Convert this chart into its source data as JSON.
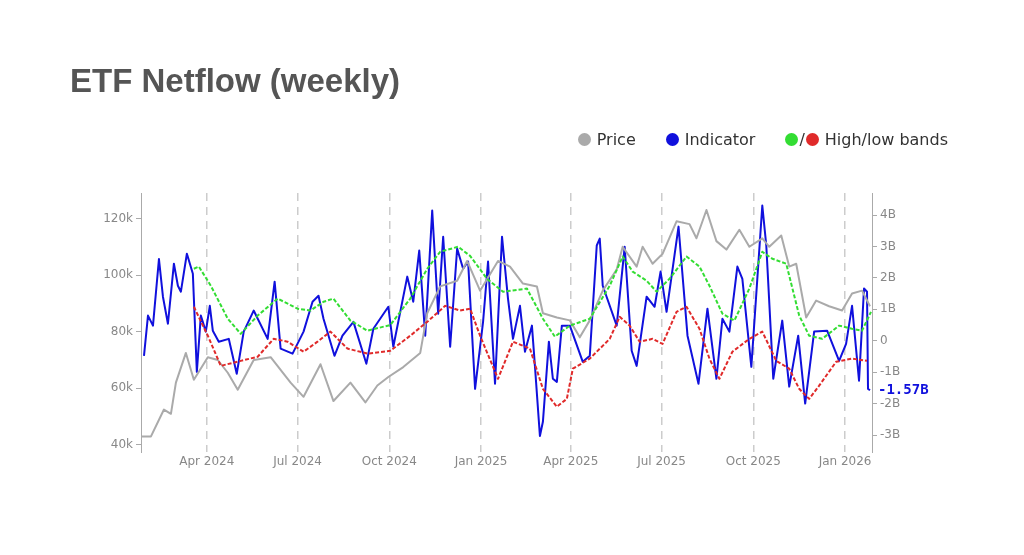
{
  "chart_data": {
    "type": "line",
    "title": "ETF Netflow (weekly)",
    "legend": "top right",
    "grid": "x",
    "marker": "none",
    "xlim": [
      "2024-01-26",
      "2026-01-28"
    ],
    "xticks": [
      {
        "value": "2024-04-01",
        "label": "Apr 2024"
      },
      {
        "value": "2024-07-01",
        "label": "Jul 2024"
      },
      {
        "value": "2024-10-01",
        "label": "Oct 2024"
      },
      {
        "value": "2025-01-01",
        "label": "Jan 2025"
      },
      {
        "value": "2025-04-01",
        "label": "Apr 2025"
      },
      {
        "value": "2025-07-01",
        "label": "Jul 2025"
      },
      {
        "value": "2025-10-01",
        "label": "Oct 2025"
      },
      {
        "value": "2026-01-01",
        "label": "Jan 2026"
      }
    ],
    "ylim": [
      37500,
      129000
    ],
    "yticks": [
      {
        "value": 40000,
        "label": "40k"
      },
      {
        "value": 60000,
        "label": "60k"
      },
      {
        "value": 80000,
        "label": "80k"
      },
      {
        "value": 100000,
        "label": "100k"
      },
      {
        "value": 120000,
        "label": "120k"
      }
    ],
    "y2lim": [
      -3.54,
      4.7
    ],
    "y2ticks": [
      {
        "value": -3,
        "label": "-3B"
      },
      {
        "value": -2,
        "label": "-2B"
      },
      {
        "value": -1,
        "label": "-1B"
      },
      0,
      {
        "value": 1,
        "label": "1B"
      },
      {
        "value": 2,
        "label": "2B"
      },
      {
        "value": 3,
        "label": "3B"
      },
      {
        "value": 4,
        "label": "4B"
      }
    ],
    "annotations": [
      "-1.57B"
    ],
    "series": [
      {
        "name": "Price",
        "color": "#aaaaaa",
        "x": [
          "2024-01-27",
          "2024-02-05",
          "2024-02-18",
          "2024-02-25",
          "2024-03-01",
          "2024-03-11",
          "2024-03-19",
          "2024-04-02",
          "2024-04-12",
          "2024-04-22",
          "2024-05-02",
          "2024-05-18",
          "2024-06-04",
          "2024-06-24",
          "2024-07-07",
          "2024-07-24",
          "2024-08-06",
          "2024-08-23",
          "2024-09-07",
          "2024-09-19",
          "2024-09-30",
          "2024-10-15",
          "2024-11-01",
          "2024-11-08",
          "2024-11-21",
          "2024-12-08",
          "2024-12-18",
          "2024-12-31",
          "2025-01-18",
          "2025-01-30",
          "2025-02-12",
          "2025-02-26",
          "2025-03-04",
          "2025-03-18",
          "2025-03-31",
          "2025-04-10",
          "2025-04-20",
          "2025-05-03",
          "2025-05-17",
          "2025-05-23",
          "2025-06-06",
          "2025-06-12",
          "2025-06-22",
          "2025-07-02",
          "2025-07-16",
          "2025-07-29",
          "2025-08-05",
          "2025-08-15",
          "2025-08-25",
          "2025-09-04",
          "2025-09-17",
          "2025-09-27",
          "2025-10-10",
          "2025-10-17",
          "2025-10-29",
          "2025-11-06",
          "2025-11-13",
          "2025-11-23",
          "2025-12-03",
          "2025-12-16",
          "2025-12-29",
          "2026-01-08",
          "2026-01-18",
          "2026-01-26"
        ],
        "values": [
          43000,
          43000,
          52500,
          51000,
          62000,
          72500,
          63000,
          71000,
          70000,
          65500,
          59500,
          70000,
          71000,
          62000,
          57000,
          68500,
          55500,
          62000,
          55000,
          61000,
          64000,
          67500,
          72500,
          86500,
          96000,
          98000,
          105000,
          94500,
          105000,
          103000,
          97000,
          96000,
          86500,
          85000,
          84000,
          78000,
          84000,
          94500,
          102000,
          110000,
          103000,
          110000,
          104000,
          107500,
          119000,
          118000,
          113000,
          123000,
          112000,
          109000,
          116000,
          110000,
          113000,
          110000,
          114000,
          103000,
          104000,
          85000,
          91000,
          89000,
          87500,
          93500,
          94500,
          89000
        ]
      },
      {
        "name": "Indicator",
        "color": "#1010dd",
        "axis": "y2",
        "x": [
          "2024-01-29",
          "2024-02-02",
          "2024-02-07",
          "2024-02-13",
          "2024-02-17",
          "2024-02-22",
          "2024-02-28",
          "2024-03-03",
          "2024-03-06",
          "2024-03-12",
          "2024-03-18",
          "2024-03-22",
          "2024-03-26",
          "2024-03-31",
          "2024-04-04",
          "2024-04-07",
          "2024-04-13",
          "2024-04-23",
          "2024-05-01",
          "2024-05-08",
          "2024-05-18",
          "2024-06-01",
          "2024-06-08",
          "2024-06-14",
          "2024-06-26",
          "2024-07-07",
          "2024-07-16",
          "2024-07-22",
          "2024-07-27",
          "2024-08-07",
          "2024-08-15",
          "2024-08-26",
          "2024-09-08",
          "2024-09-15",
          "2024-09-30",
          "2024-10-05",
          "2024-10-19",
          "2024-10-25",
          "2024-10-31",
          "2024-11-06",
          "2024-11-13",
          "2024-11-19",
          "2024-11-24",
          "2024-12-01",
          "2024-12-08",
          "2024-12-14",
          "2024-12-19",
          "2024-12-26",
          "2025-01-03",
          "2025-01-08",
          "2025-01-15",
          "2025-01-22",
          "2025-01-28",
          "2025-02-02",
          "2025-02-09",
          "2025-02-14",
          "2025-02-21",
          "2025-02-24",
          "2025-03-01",
          "2025-03-04",
          "2025-03-10",
          "2025-03-14",
          "2025-03-18",
          "2025-03-23",
          "2025-03-31",
          "2025-04-13",
          "2025-04-20",
          "2025-04-27",
          "2025-04-30",
          "2025-05-03",
          "2025-05-17",
          "2025-05-25",
          "2025-06-01",
          "2025-06-06",
          "2025-06-16",
          "2025-06-24",
          "2025-06-30",
          "2025-07-06",
          "2025-07-18",
          "2025-07-27",
          "2025-08-07",
          "2025-08-16",
          "2025-08-25",
          "2025-08-31",
          "2025-09-07",
          "2025-09-15",
          "2025-09-20",
          "2025-09-29",
          "2025-10-10",
          "2025-10-14",
          "2025-10-21",
          "2025-10-30",
          "2025-11-06",
          "2025-11-15",
          "2025-11-22",
          "2025-12-01",
          "2025-12-14",
          "2025-12-26",
          "2026-01-02",
          "2026-01-08",
          "2026-01-15",
          "2026-01-20",
          "2026-01-23",
          "2026-01-24",
          "2026-01-26"
        ],
        "values": [
          -0.48,
          0.8,
          0.48,
          2.6,
          1.4,
          0.54,
          2.45,
          1.75,
          1.56,
          2.77,
          2.13,
          -0.99,
          0.8,
          0.29,
          1.11,
          0.32,
          -0.03,
          0.06,
          -1.05,
          0.29,
          0.96,
          0.06,
          1.88,
          -0.25,
          -0.41,
          0.29,
          1.24,
          1.43,
          0.7,
          -0.48,
          0.16,
          0.6,
          -0.73,
          0.38,
          1.08,
          -0.19,
          2.04,
          1.24,
          2.87,
          0.16,
          4.14,
          0.86,
          3.31,
          -0.19,
          2.93,
          2.29,
          2.52,
          -1.53,
          0.6,
          2.52,
          -1.37,
          3.31,
          1.34,
          0.06,
          1.11,
          -0.35,
          0.48,
          -0.8,
          -3.03,
          -2.58,
          -0.03,
          -1.21,
          -1.31,
          0.48,
          0.48,
          -0.67,
          -0.48,
          3.03,
          3.25,
          1.75,
          0.48,
          2.99,
          -0.32,
          -0.8,
          1.4,
          1.08,
          2.2,
          0.92,
          3.63,
          0.16,
          -1.37,
          1.02,
          -1.21,
          0.7,
          0.29,
          2.36,
          1.97,
          -0.83,
          4.3,
          3.03,
          -1.21,
          0.64,
          -1.46,
          0.16,
          -2.0,
          0.29,
          0.32,
          -0.64,
          -0.1,
          1.11,
          -1.27,
          1.66,
          1.56,
          -1.53,
          -1.57
        ]
      },
      {
        "name": "/",
        "color": "#33dd33",
        "axis": "y2",
        "line_style": "dashed",
        "x": [
          "2024-03-19",
          "2024-03-24",
          "2024-04-05",
          "2024-04-22",
          "2024-05-05",
          "2024-05-22",
          "2024-06-11",
          "2024-07-01",
          "2024-07-14",
          "2024-07-27",
          "2024-08-06",
          "2024-08-23",
          "2024-09-09",
          "2024-10-02",
          "2024-10-22",
          "2024-11-08",
          "2024-11-21",
          "2024-12-09",
          "2024-12-21",
          "2025-01-07",
          "2025-01-23",
          "2025-02-16",
          "2025-03-04",
          "2025-03-16",
          "2025-03-31",
          "2025-04-20",
          "2025-05-10",
          "2025-05-23",
          "2025-06-02",
          "2025-06-16",
          "2025-06-26",
          "2025-07-09",
          "2025-07-26",
          "2025-08-08",
          "2025-08-18",
          "2025-08-31",
          "2025-09-12",
          "2025-09-27",
          "2025-10-10",
          "2025-10-20",
          "2025-11-03",
          "2025-11-16",
          "2025-11-26",
          "2025-12-09",
          "2025-12-26",
          "2026-01-08",
          "2026-01-18",
          "2026-01-27"
        ],
        "values": [
          2.29,
          2.36,
          1.75,
          0.7,
          0.22,
          0.8,
          1.34,
          1.02,
          0.96,
          1.24,
          1.34,
          0.64,
          0.32,
          0.5,
          1.34,
          2.29,
          2.83,
          2.99,
          2.7,
          1.97,
          1.56,
          1.66,
          0.7,
          0.13,
          0.48,
          0.7,
          1.75,
          2.68,
          2.2,
          1.91,
          1.56,
          1.97,
          2.68,
          2.36,
          1.75,
          0.86,
          0.64,
          1.66,
          2.83,
          2.61,
          2.45,
          0.8,
          0.16,
          0.06,
          0.48,
          0.38,
          0.32,
          0.92
        ]
      },
      {
        "name": "High/low bands",
        "color": "#e02a2a",
        "axis": "y2",
        "line_style": "dashed",
        "x": [
          "2024-03-19",
          "2024-04-02",
          "2024-04-15",
          "2024-05-05",
          "2024-05-22",
          "2024-06-07",
          "2024-06-21",
          "2024-07-07",
          "2024-07-21",
          "2024-08-03",
          "2024-08-20",
          "2024-09-09",
          "2024-10-02",
          "2024-10-22",
          "2024-11-08",
          "2024-11-26",
          "2024-12-11",
          "2024-12-21",
          "2024-12-31",
          "2025-01-18",
          "2025-02-02",
          "2025-02-19",
          "2025-03-04",
          "2025-03-18",
          "2025-03-28",
          "2025-04-03",
          "2025-04-20",
          "2025-05-10",
          "2025-05-20",
          "2025-05-30",
          "2025-06-09",
          "2025-06-22",
          "2025-07-02",
          "2025-07-16",
          "2025-07-26",
          "2025-08-08",
          "2025-08-18",
          "2025-08-28",
          "2025-09-10",
          "2025-09-27",
          "2025-10-10",
          "2025-10-24",
          "2025-11-06",
          "2025-11-16",
          "2025-11-26",
          "2025-12-06",
          "2025-12-23",
          "2026-01-08",
          "2026-01-23"
        ],
        "values": [
          1.08,
          0.16,
          -0.8,
          -0.64,
          -0.51,
          0.06,
          -0.03,
          -0.35,
          -0.03,
          0.29,
          -0.25,
          -0.41,
          -0.32,
          0.16,
          0.6,
          1.11,
          0.96,
          1.02,
          0.16,
          -1.21,
          -0.03,
          -0.25,
          -1.53,
          -2.1,
          -1.85,
          -0.89,
          -0.57,
          0.06,
          0.76,
          0.48,
          -0.03,
          0.06,
          -0.1,
          0.92,
          1.08,
          0.38,
          -0.57,
          -1.21,
          -0.35,
          0.06,
          0.29,
          -0.64,
          -0.89,
          -1.53,
          -1.85,
          -1.43,
          -0.67,
          -0.57,
          -0.64
        ]
      }
    ]
  }
}
